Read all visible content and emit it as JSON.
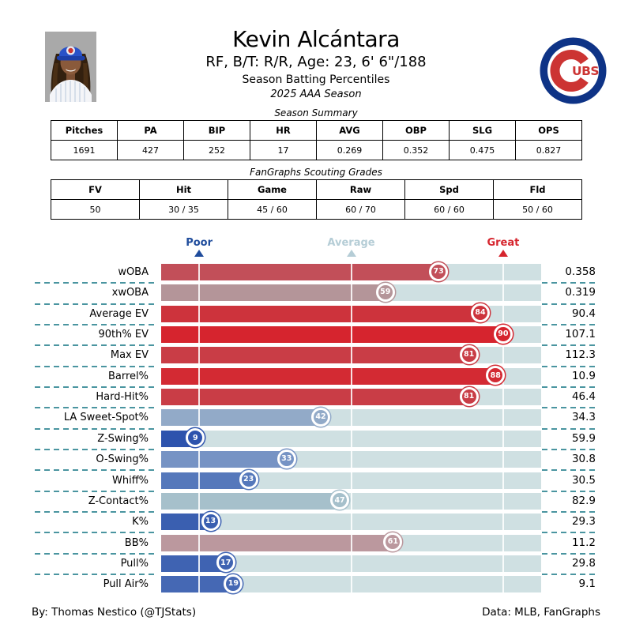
{
  "header": {
    "title": "Kevin Alcántara",
    "subtitle": "RF, B/T: R/R, Age: 23, 6' 6\"/188",
    "line3": "Season Batting Percentiles",
    "line4": "2025 AAA Season",
    "logo_letters": {
      "big": "C",
      "small": "UBS"
    },
    "logo_colors": {
      "ring_blue": "#0e3386",
      "red": "#cc3433"
    }
  },
  "season_summary": {
    "caption": "Season Summary",
    "columns": [
      "Pitches",
      "PA",
      "BIP",
      "HR",
      "AVG",
      "OBP",
      "SLG",
      "OPS"
    ],
    "values": [
      "1691",
      "427",
      "252",
      "17",
      "0.269",
      "0.352",
      "0.475",
      "0.827"
    ]
  },
  "scouting_grades": {
    "caption": "FanGraphs Scouting Grades",
    "columns": [
      "FV",
      "Hit",
      "Game",
      "Raw",
      "Spd",
      "Fld"
    ],
    "values": [
      "50",
      "30 / 35",
      "45 / 60",
      "60 / 70",
      "60 / 60",
      "50 / 60"
    ]
  },
  "chart_data": {
    "type": "bar",
    "title": "Season Batting Percentiles",
    "xlabel": "percentile",
    "xlim": [
      0,
      100
    ],
    "gridline_percentiles": [
      10,
      50,
      90
    ],
    "track_color": "#cfe0e2",
    "separator_color": "#4a95a0",
    "axis_markers": [
      {
        "label": "Poor",
        "percentile": 10,
        "color": "#1f4c9c"
      },
      {
        "label": "Average",
        "percentile": 50,
        "color": "#b5cdd6"
      },
      {
        "label": "Great",
        "percentile": 90,
        "color": "#d6252e"
      }
    ],
    "rows": [
      {
        "label": "wOBA",
        "percentile": 73,
        "value": "0.358",
        "color": "#c24f59"
      },
      {
        "label": "xwOBA",
        "percentile": 59,
        "value": "0.319",
        "color": "#b49599"
      },
      {
        "label": "Average EV",
        "percentile": 84,
        "value": "90.4",
        "color": "#cd333c"
      },
      {
        "label": "90th% EV",
        "percentile": 90,
        "value": "107.1",
        "color": "#d6242e"
      },
      {
        "label": "Max EV",
        "percentile": 81,
        "value": "112.3",
        "color": "#c93d46"
      },
      {
        "label": "Barrel%",
        "percentile": 88,
        "value": "10.9",
        "color": "#d32a33"
      },
      {
        "label": "Hard-Hit%",
        "percentile": 81,
        "value": "46.4",
        "color": "#c93d46"
      },
      {
        "label": "LA Sweet-Spot%",
        "percentile": 42,
        "value": "34.3",
        "color": "#92aac8"
      },
      {
        "label": "Z-Swing%",
        "percentile": 9,
        "value": "59.9",
        "color": "#2d53ad"
      },
      {
        "label": "O-Swing%",
        "percentile": 33,
        "value": "30.8",
        "color": "#7693c4"
      },
      {
        "label": "Whiff%",
        "percentile": 23,
        "value": "30.5",
        "color": "#5578bb"
      },
      {
        "label": "Z-Contact%",
        "percentile": 47,
        "value": "82.9",
        "color": "#a6c0cb"
      },
      {
        "label": "K%",
        "percentile": 13,
        "value": "29.3",
        "color": "#3a5fb0"
      },
      {
        "label": "BB%",
        "percentile": 61,
        "value": "11.2",
        "color": "#bb989e"
      },
      {
        "label": "Pull%",
        "percentile": 17,
        "value": "29.8",
        "color": "#3f63b2"
      },
      {
        "label": "Pull Air%",
        "percentile": 19,
        "value": "9.1",
        "color": "#4568b4"
      }
    ]
  },
  "footer": {
    "credit": "By: Thomas Nestico (@TJStats)",
    "data_source": "Data: MLB, FanGraphs"
  }
}
